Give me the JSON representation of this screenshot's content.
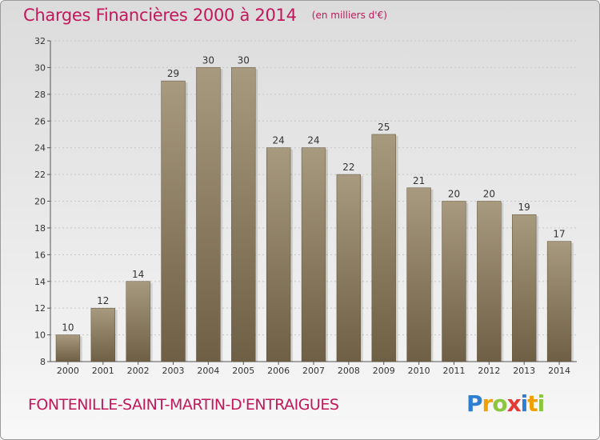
{
  "header": {
    "title": "Charges Financières 2000 à 2014",
    "subtitle": "(en milliers d'€)"
  },
  "footer": {
    "commune": "FONTENILLE-SAINT-MARTIN-D'ENTRAIGUES",
    "logo": "Proxiti"
  },
  "colors": {
    "accent": "#c2185b",
    "bar_top": "#a89a7e",
    "bar_bottom": "#6e5f45",
    "grid": "#c8c8c8"
  },
  "chart_data": {
    "type": "bar",
    "title": "Charges Financières 2000 à 2014",
    "subtitle": "(en milliers d'€)",
    "categories": [
      "2000",
      "2001",
      "2002",
      "2003",
      "2004",
      "2005",
      "2006",
      "2007",
      "2008",
      "2009",
      "2010",
      "2011",
      "2012",
      "2013",
      "2014"
    ],
    "values": [
      10,
      12,
      14,
      29,
      30,
      30,
      24,
      24,
      22,
      25,
      21,
      20,
      20,
      19,
      17
    ],
    "ylim": [
      8,
      32
    ],
    "yticks": [
      8,
      10,
      12,
      14,
      16,
      18,
      20,
      22,
      24,
      26,
      28,
      30,
      32
    ],
    "grid": true,
    "legend": "none"
  }
}
